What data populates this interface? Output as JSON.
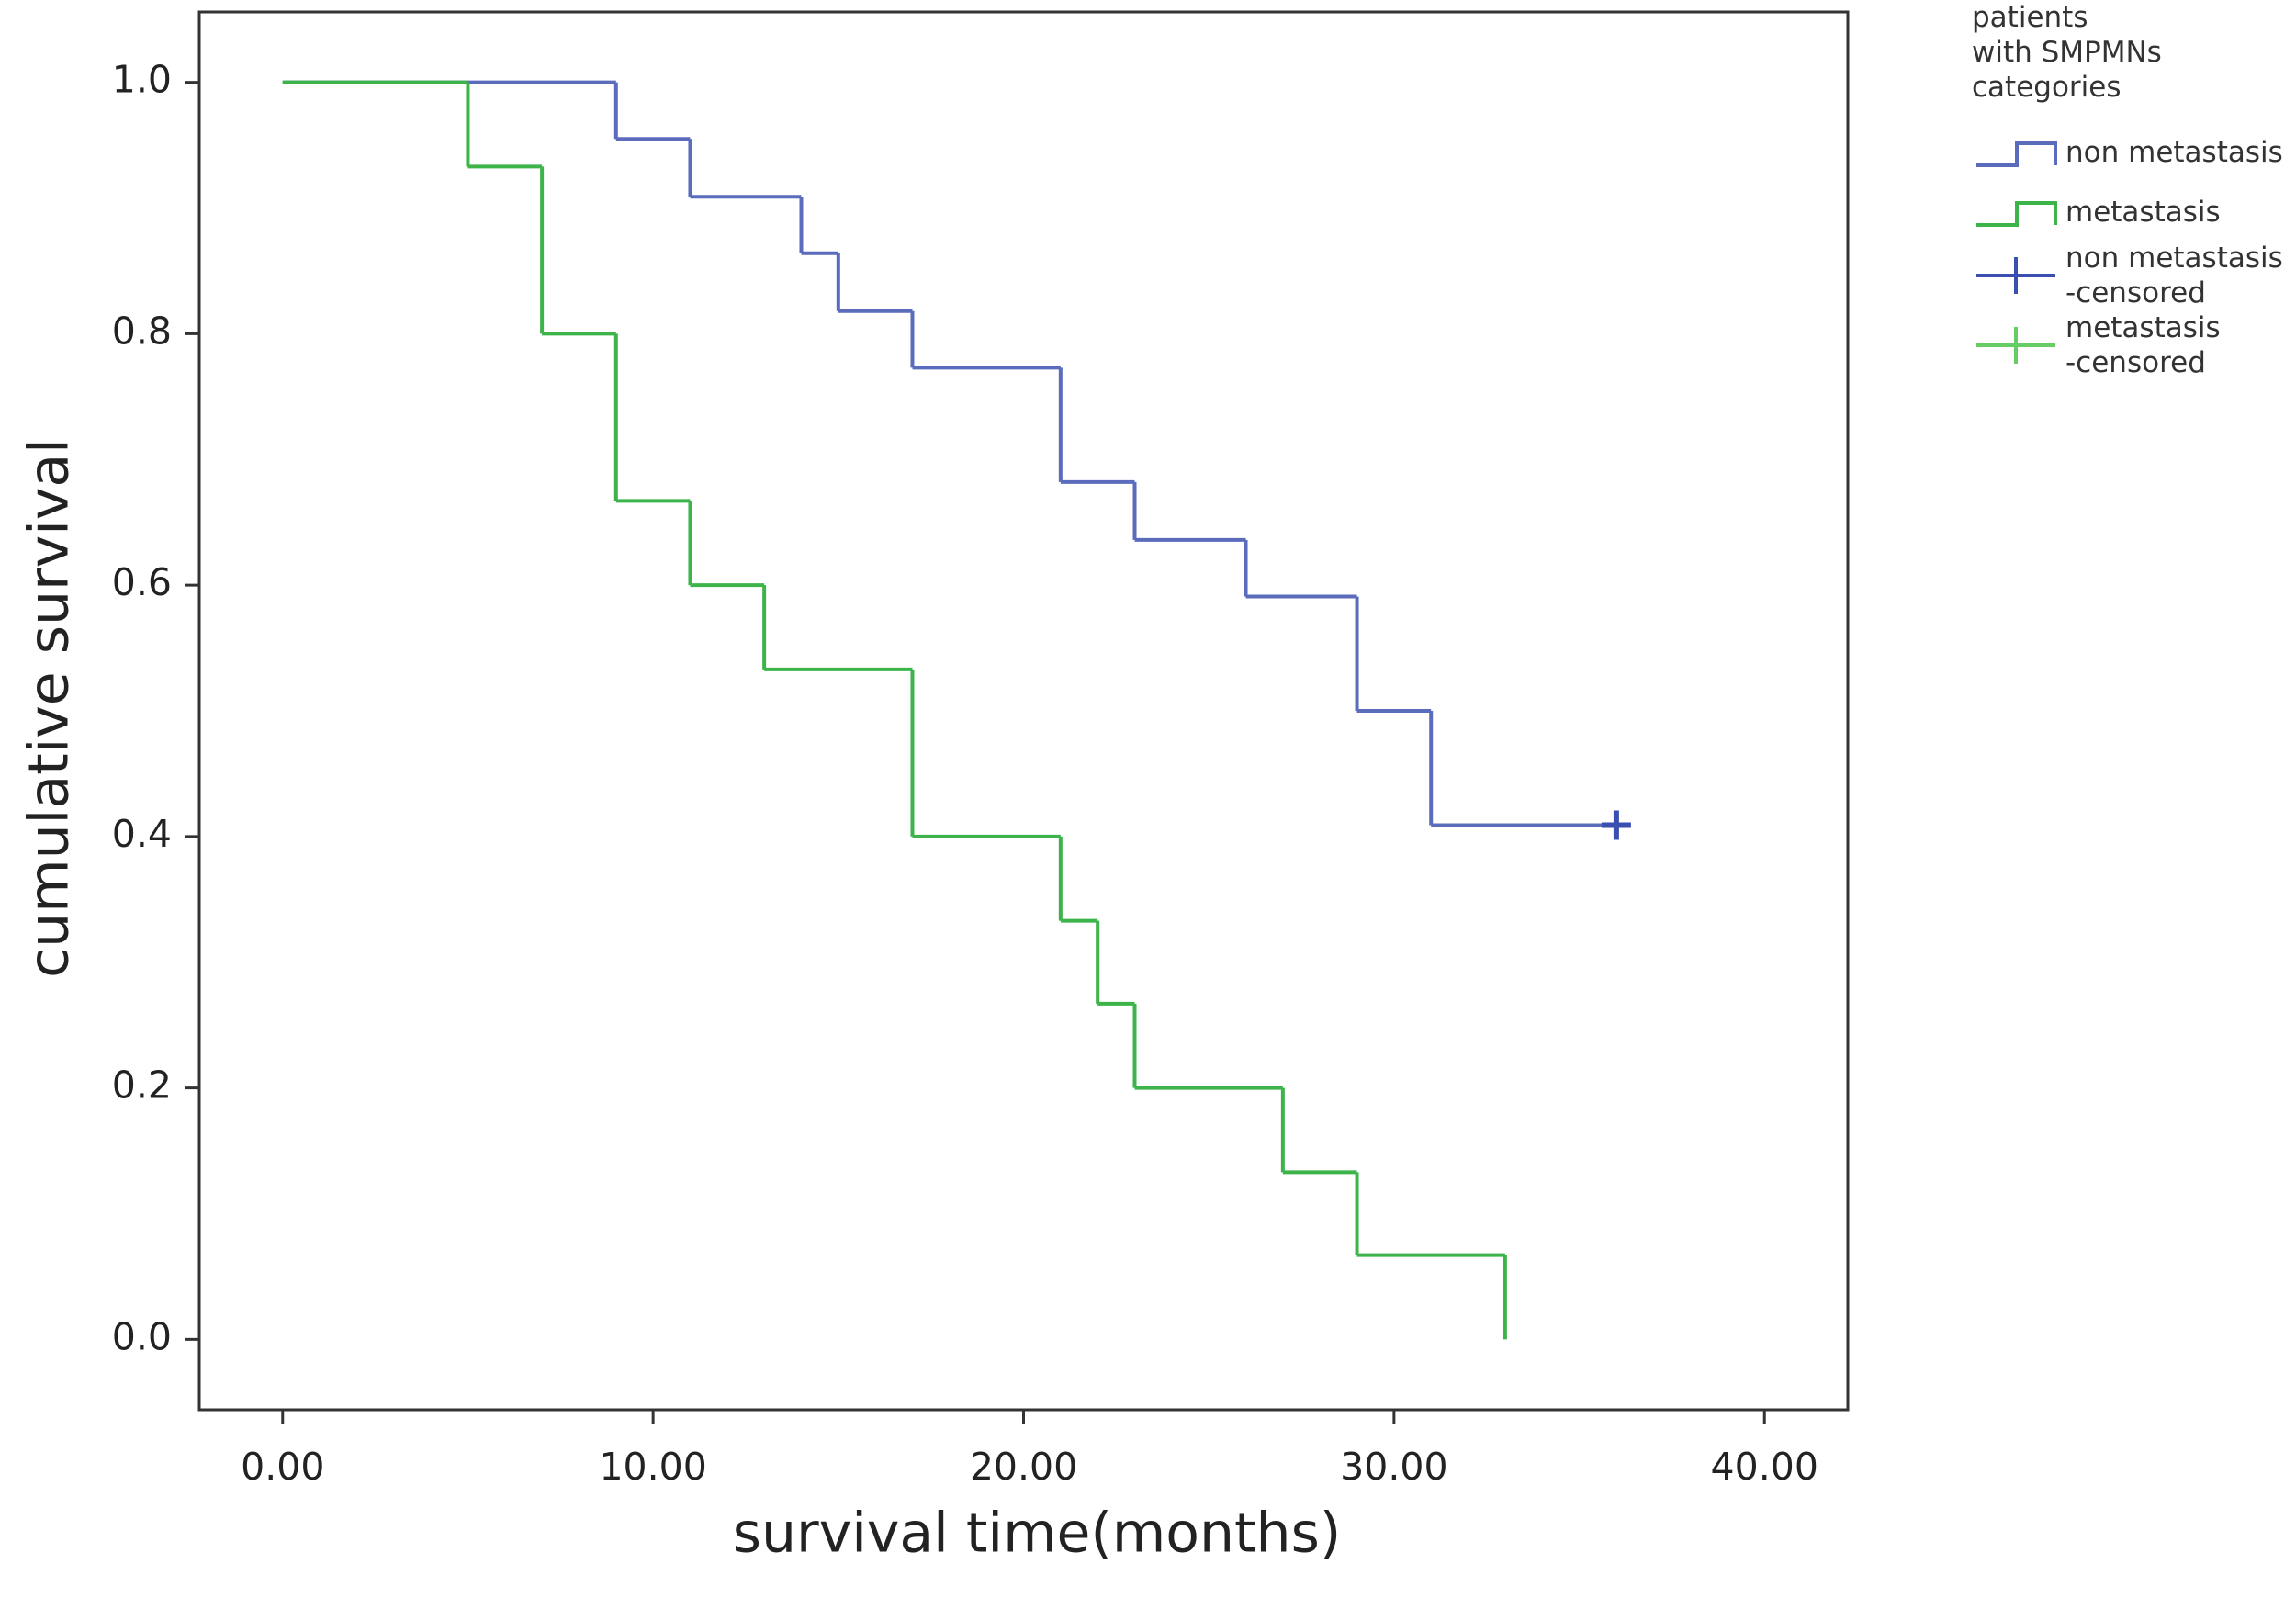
{
  "chart_data": {
    "type": "step",
    "x_label": "survival time(months)",
    "y_label": "cumulative survival",
    "legend_title": "patients\nwith SMPMNs\ncategories",
    "xlim": [
      -2.25,
      42.25
    ],
    "ylim": [
      -0.056,
      1.056
    ],
    "xticks": [
      {
        "value": 0,
        "label": "0.00"
      },
      {
        "value": 10,
        "label": "10.00"
      },
      {
        "value": 20,
        "label": "20.00"
      },
      {
        "value": 30,
        "label": "30.00"
      },
      {
        "value": 40,
        "label": "40.00"
      }
    ],
    "yticks": [
      {
        "value": 0,
        "label": "0.0"
      },
      0.2,
      0.4,
      0.6,
      0.8,
      {
        "value": 1,
        "label": "1.0"
      }
    ],
    "series": [
      {
        "name": "non metastasis",
        "kind": "step",
        "color": "#5b6cbd",
        "x": [
          0,
          9,
          11,
          14,
          15,
          17,
          21,
          23,
          26,
          29,
          31,
          36
        ],
        "values": [
          1.0,
          0.955,
          0.909,
          0.864,
          0.818,
          0.773,
          0.682,
          0.636,
          0.591,
          0.5,
          0.409,
          0.409
        ]
      },
      {
        "name": "metastasis",
        "kind": "step",
        "color": "#3cb44a",
        "x": [
          0,
          5,
          7,
          9,
          11,
          13,
          17,
          21,
          22,
          23,
          27,
          29,
          33
        ],
        "values": [
          1.0,
          0.933,
          0.8,
          0.667,
          0.6,
          0.533,
          0.4,
          0.333,
          0.267,
          0.2,
          0.133,
          0.067,
          0.0
        ]
      },
      {
        "name": "non metastasis\n-censored",
        "kind": "censored",
        "color": "#3a4fb0",
        "x": [
          36
        ],
        "values": [
          0.409
        ]
      },
      {
        "name": "metastasis\n-censored",
        "kind": "censored",
        "color": "#66cc66",
        "x": [],
        "values": []
      }
    ]
  }
}
